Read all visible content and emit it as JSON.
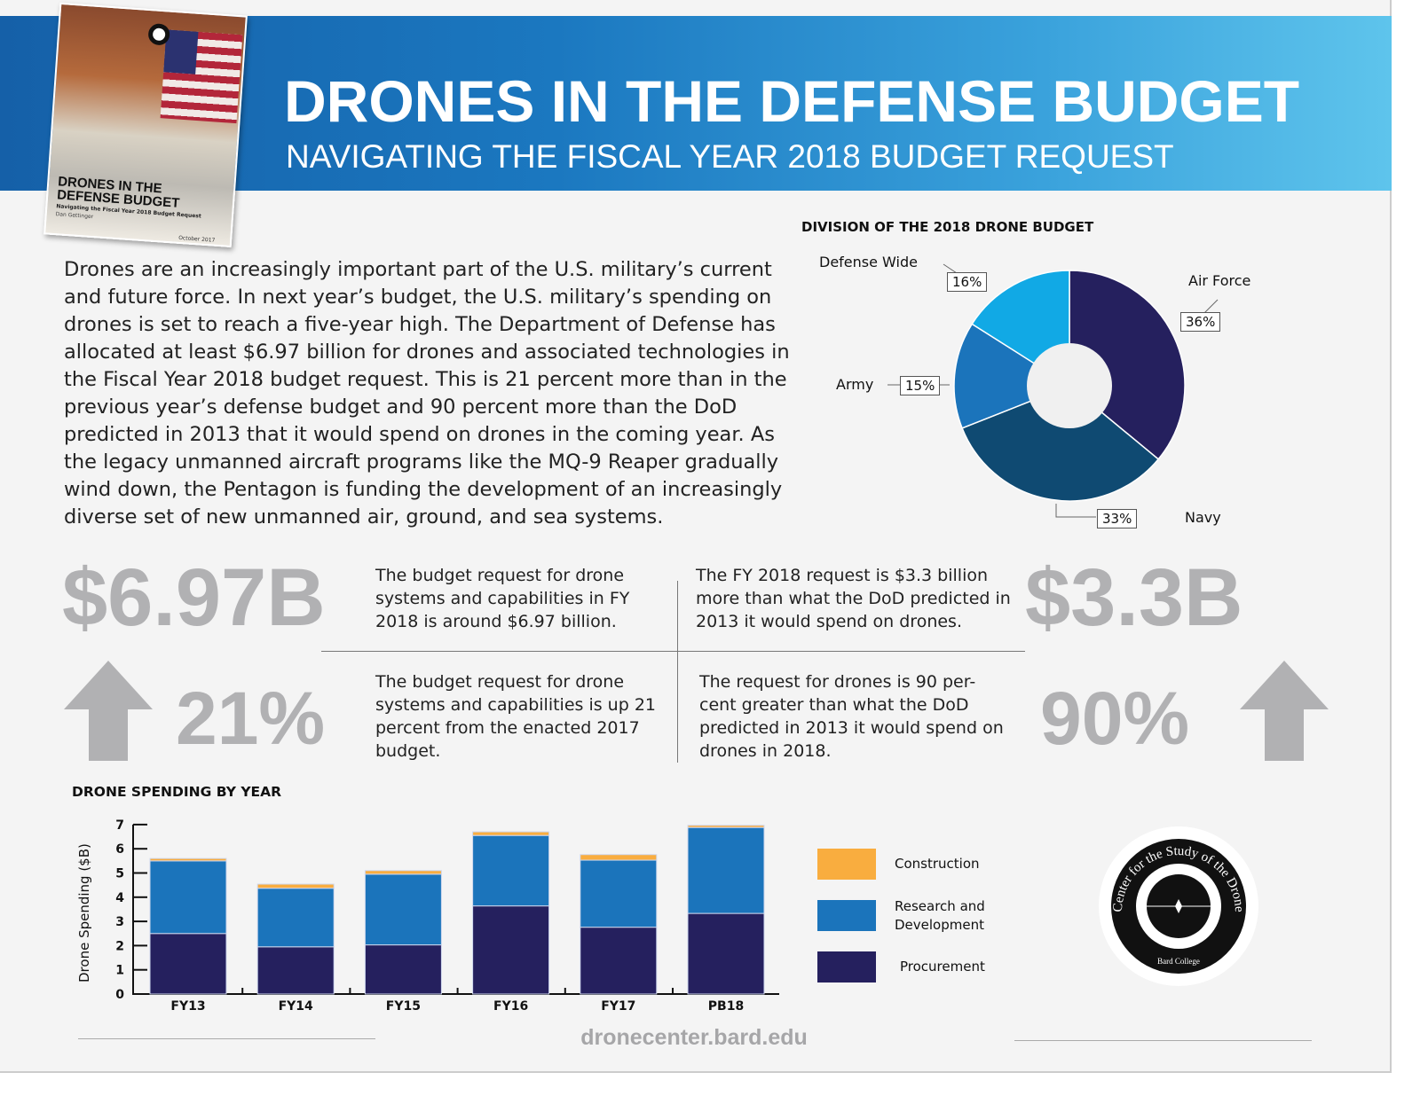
{
  "header": {
    "title": "DRONES IN THE DEFENSE BUDGET",
    "subtitle": "NAVIGATING THE FISCAL YEAR 2018 BUDGET REQUEST"
  },
  "cover": {
    "title": "DRONES IN THE DEFENSE BUDGET",
    "subtitle": "Navigating the Fiscal Year 2018 Budget Request",
    "author": "Dan Gettinger",
    "date": "October 2017"
  },
  "intro": "Drones are an increasingly important part of the U.S. military’s current and future force. In next year’s budget, the U.S. military’s spending on drones is set to reach a five-year high. The Department of Defense has allocated at least $6.97 billion for drones and associated technologies in the Fiscal Year 2018 budget request. This is 21 percent more than in the previous year’s defense budget and 90 percent more than the DoD predicted in 2013 that it would spend on drones in the coming year. As the legacy unmanned aircraft programs like the MQ-9 Reaper gradually wind down, the Pentagon is funding the development of an increasingly diverse set of new unmanned air, ground, and sea systems.",
  "stats": [
    {
      "value": "$6.97B",
      "text": "The budget request for drone systems and capabilities in FY 2018 is around $6.97 billion."
    },
    {
      "value": "$3.3B",
      "text": "The FY 2018 request is $3.3 billion more than what the DoD predicted in 2013 it would spend on drones."
    },
    {
      "value": "21%",
      "text": "The budget request for drone systems and capabilities is up 21 percent from the enacted 2017 budget.",
      "icon": "arrow-up-icon"
    },
    {
      "value": "90%",
      "text": "The request for drones is 90 per-cent greater than what the DoD predicted in 2013 it would spend on drones in 2018.",
      "icon": "arrow-up-icon"
    }
  ],
  "chart_data": [
    {
      "type": "pie",
      "title": "DIVISION OF THE 2018 DRONE BUDGET",
      "donut": true,
      "slices": [
        {
          "label": "Air Force",
          "value": 36,
          "display": "36%",
          "color": "#25205e"
        },
        {
          "label": "Navy",
          "value": 33,
          "display": "33%",
          "color": "#0f4a72"
        },
        {
          "label": "Army",
          "value": 15,
          "display": "15%",
          "color": "#1b74bb"
        },
        {
          "label": "Defense Wide",
          "value": 16,
          "display": "16%",
          "color": "#11a9e5"
        }
      ]
    },
    {
      "type": "bar",
      "stacked": true,
      "title": "DRONE SPENDING BY YEAR",
      "xlabel": "",
      "ylabel": "Drone Spending ($B)",
      "ylim": [
        0,
        7
      ],
      "yticks": [
        "0",
        "1",
        "2",
        "3",
        "4",
        "5",
        "6",
        "7"
      ],
      "categories": [
        "FY13",
        "FY14",
        "FY15",
        "FY16",
        "FY17",
        "PB18"
      ],
      "legend_placement": "right",
      "series": [
        {
          "name": "Procurement",
          "color": "#25205e",
          "values": [
            2.5,
            1.95,
            2.03,
            3.64,
            2.76,
            3.33
          ]
        },
        {
          "name": "Research and Development",
          "color": "#1b74bb",
          "values": [
            3.0,
            2.42,
            2.92,
            2.91,
            2.77,
            3.55
          ]
        },
        {
          "name": "Construction",
          "color": "#f9ad3f",
          "values": [
            0.1,
            0.17,
            0.15,
            0.15,
            0.23,
            0.09
          ]
        }
      ]
    }
  ],
  "logo": {
    "ring_text": "Center for the Study of the Drone",
    "bottom_text": "Bard College"
  },
  "footer": {
    "url": "dronecenter.bard.edu"
  }
}
